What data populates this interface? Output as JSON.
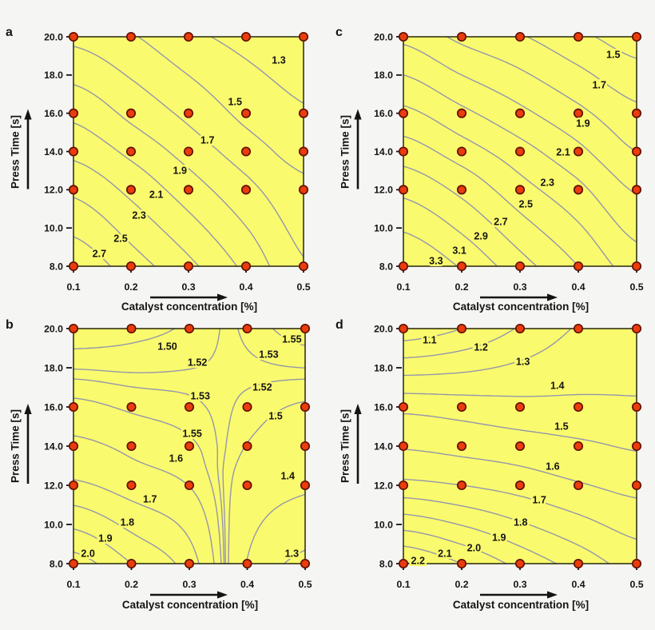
{
  "figure": {
    "description": "Four contour plots (a, b, c, d) of response surfaces over catalyst concentration and press time, with red design points on a 5x5 grid",
    "panel_letters": [
      "a",
      "b",
      "c",
      "d"
    ]
  },
  "colors": {
    "background": "#f5f5f3",
    "plot_fill": "#fafa6e",
    "contour_line": "#9597ab",
    "point_fill": "#ea3c0c",
    "point_stroke": "#601000",
    "axis": "#141414",
    "text": "#141414"
  },
  "axes": {
    "x": {
      "title": "Catalyst concentration [%]",
      "tick_labels": [
        "0.1",
        "0.2",
        "0.3",
        "0.4",
        "0.5"
      ],
      "tick_values": [
        0.1,
        0.2,
        0.3,
        0.4,
        0.5
      ],
      "range": [
        0.1,
        0.5
      ]
    },
    "y": {
      "title": "Press Time [s]",
      "tick_labels": [
        "20.0",
        "18.0",
        "16.0",
        "14.0",
        "12.0",
        "10.0",
        "8.0"
      ],
      "tick_values": [
        20,
        18,
        16,
        14,
        12,
        10,
        8
      ],
      "range": [
        8,
        20
      ]
    }
  },
  "design_points": {
    "x": [
      0.1,
      0.2,
      0.3,
      0.4,
      0.5
    ],
    "y": [
      8,
      12,
      14,
      16,
      20
    ]
  },
  "chart_data": [
    {
      "panel": "a",
      "type": "contour",
      "xlim": [
        0.1,
        0.5
      ],
      "ylim": [
        8,
        20
      ],
      "grid_x": [
        0.1,
        0.2,
        0.3,
        0.4,
        0.5
      ],
      "grid_y": [
        20,
        16,
        14,
        12,
        8
      ],
      "z": [
        [
          1.65,
          1.52,
          1.35,
          1.24,
          1.18
        ],
        [
          2.05,
          1.85,
          1.65,
          1.45,
          1.32
        ],
        [
          2.25,
          2.05,
          1.82,
          1.6,
          1.42
        ],
        [
          2.46,
          2.25,
          2.0,
          1.76,
          1.55
        ],
        [
          2.85,
          2.6,
          2.35,
          2.05,
          1.72
        ]
      ],
      "levels": [
        1.3,
        1.5,
        1.7,
        1.9,
        2.1,
        2.3,
        2.5,
        2.7
      ],
      "labels": [
        {
          "text": "1.3",
          "x": 0.457,
          "y": 18.79
        },
        {
          "text": "1.5",
          "x": 0.381,
          "y": 16.61
        },
        {
          "text": "1.7",
          "x": 0.333,
          "y": 14.61
        },
        {
          "text": "1.9",
          "x": 0.285,
          "y": 13.02
        },
        {
          "text": "2.1",
          "x": 0.244,
          "y": 11.76
        },
        {
          "text": "2.3",
          "x": 0.214,
          "y": 10.67
        },
        {
          "text": "2.5",
          "x": 0.182,
          "y": 9.46
        },
        {
          "text": "2.7",
          "x": 0.145,
          "y": 8.67
        }
      ]
    },
    {
      "panel": "b",
      "type": "contour",
      "xlim": [
        0.1,
        0.5
      ],
      "ylim": [
        8,
        20
      ],
      "grid_x": [
        0.1,
        0.2,
        0.3,
        0.4,
        0.5
      ],
      "grid_y": [
        20,
        16,
        14,
        12,
        8
      ],
      "z": [
        [
          1.48,
          1.49,
          1.505,
          1.535,
          1.565
        ],
        [
          1.56,
          1.545,
          1.535,
          1.515,
          1.495
        ],
        [
          1.62,
          1.585,
          1.558,
          1.498,
          1.458
        ],
        [
          1.72,
          1.655,
          1.598,
          1.468,
          1.415
        ],
        [
          2.05,
          1.9,
          1.75,
          1.395,
          1.275
        ]
      ],
      "levels": [
        1.3,
        1.4,
        1.5,
        1.52,
        1.53,
        1.55,
        1.6,
        1.7,
        1.8,
        1.9,
        2.0
      ],
      "labels": [
        {
          "text": "1.50",
          "x": 0.262,
          "y": 19.1
        },
        {
          "text": "1.52",
          "x": 0.314,
          "y": 18.28
        },
        {
          "text": "1.55",
          "x": 0.477,
          "y": 19.47
        },
        {
          "text": "1.53",
          "x": 0.437,
          "y": 18.69
        },
        {
          "text": "1.53",
          "x": 0.319,
          "y": 16.57
        },
        {
          "text": "1.52",
          "x": 0.426,
          "y": 17.02
        },
        {
          "text": "1.55",
          "x": 0.305,
          "y": 14.65
        },
        {
          "text": "1.5",
          "x": 0.449,
          "y": 15.55
        },
        {
          "text": "1.6",
          "x": 0.277,
          "y": 13.39
        },
        {
          "text": "1.4",
          "x": 0.47,
          "y": 12.49
        },
        {
          "text": "1.7",
          "x": 0.232,
          "y": 11.31
        },
        {
          "text": "1.8",
          "x": 0.193,
          "y": 10.12
        },
        {
          "text": "1.9",
          "x": 0.155,
          "y": 9.31
        },
        {
          "text": "2.0",
          "x": 0.125,
          "y": 8.53
        },
        {
          "text": "1.3",
          "x": 0.477,
          "y": 8.53
        }
      ]
    },
    {
      "panel": "c",
      "type": "contour",
      "xlim": [
        0.1,
        0.5
      ],
      "ylim": [
        8,
        20
      ],
      "grid_x": [
        0.1,
        0.2,
        0.3,
        0.4,
        0.5
      ],
      "grid_y": [
        20,
        16,
        14,
        12,
        8
      ],
      "z": [
        [
          2.05,
          1.85,
          1.72,
          1.55,
          1.4
        ],
        [
          2.55,
          2.35,
          2.15,
          1.95,
          1.75
        ],
        [
          2.8,
          2.6,
          2.38,
          2.15,
          1.9
        ],
        [
          3.05,
          2.85,
          2.58,
          2.35,
          2.08
        ],
        [
          3.5,
          3.28,
          2.98,
          2.7,
          2.4
        ]
      ],
      "levels": [
        1.5,
        1.7,
        1.9,
        2.1,
        2.3,
        2.5,
        2.7,
        2.9,
        3.1,
        3.3
      ],
      "labels": [
        {
          "text": "1.5",
          "x": 0.46,
          "y": 19.08
        },
        {
          "text": "1.7",
          "x": 0.436,
          "y": 17.49
        },
        {
          "text": "1.9",
          "x": 0.408,
          "y": 15.48
        },
        {
          "text": "2.1",
          "x": 0.374,
          "y": 13.98
        },
        {
          "text": "2.3",
          "x": 0.347,
          "y": 12.39
        },
        {
          "text": "2.5",
          "x": 0.31,
          "y": 11.26
        },
        {
          "text": "2.7",
          "x": 0.267,
          "y": 10.34
        },
        {
          "text": "2.9",
          "x": 0.233,
          "y": 9.59
        },
        {
          "text": "3.1",
          "x": 0.196,
          "y": 8.84
        },
        {
          "text": "3.3",
          "x": 0.156,
          "y": 8.29
        }
      ]
    },
    {
      "panel": "d",
      "type": "contour",
      "xlim": [
        0.1,
        0.5
      ],
      "ylim": [
        8,
        20
      ],
      "grid_x": [
        0.1,
        0.2,
        0.3,
        0.4,
        0.5
      ],
      "grid_y": [
        20,
        16,
        14,
        12,
        8
      ],
      "z": [
        [
          1.03,
          1.1,
          1.21,
          1.31,
          1.36
        ],
        [
          1.47,
          1.45,
          1.43,
          1.42,
          1.41
        ],
        [
          1.59,
          1.57,
          1.55,
          1.52,
          1.49
        ],
        [
          1.73,
          1.7,
          1.66,
          1.61,
          1.57
        ],
        [
          2.21,
          2.1,
          1.97,
          1.86,
          1.76
        ]
      ],
      "levels": [
        1.1,
        1.2,
        1.3,
        1.4,
        1.5,
        1.6,
        1.7,
        1.8,
        1.9,
        2.0,
        2.1,
        2.2
      ],
      "labels": [
        {
          "text": "1.1",
          "x": 0.145,
          "y": 19.43
        },
        {
          "text": "1.2",
          "x": 0.233,
          "y": 19.06
        },
        {
          "text": "1.3",
          "x": 0.305,
          "y": 18.33
        },
        {
          "text": "1.4",
          "x": 0.364,
          "y": 17.1
        },
        {
          "text": "1.5",
          "x": 0.371,
          "y": 15.02
        },
        {
          "text": "1.6",
          "x": 0.356,
          "y": 12.98
        },
        {
          "text": "1.7",
          "x": 0.333,
          "y": 11.27
        },
        {
          "text": "1.8",
          "x": 0.301,
          "y": 10.12
        },
        {
          "text": "1.9",
          "x": 0.264,
          "y": 9.35
        },
        {
          "text": "2.0",
          "x": 0.221,
          "y": 8.82
        },
        {
          "text": "2.1",
          "x": 0.171,
          "y": 8.53
        },
        {
          "text": "2.2",
          "x": 0.125,
          "y": 8.16
        }
      ]
    }
  ]
}
